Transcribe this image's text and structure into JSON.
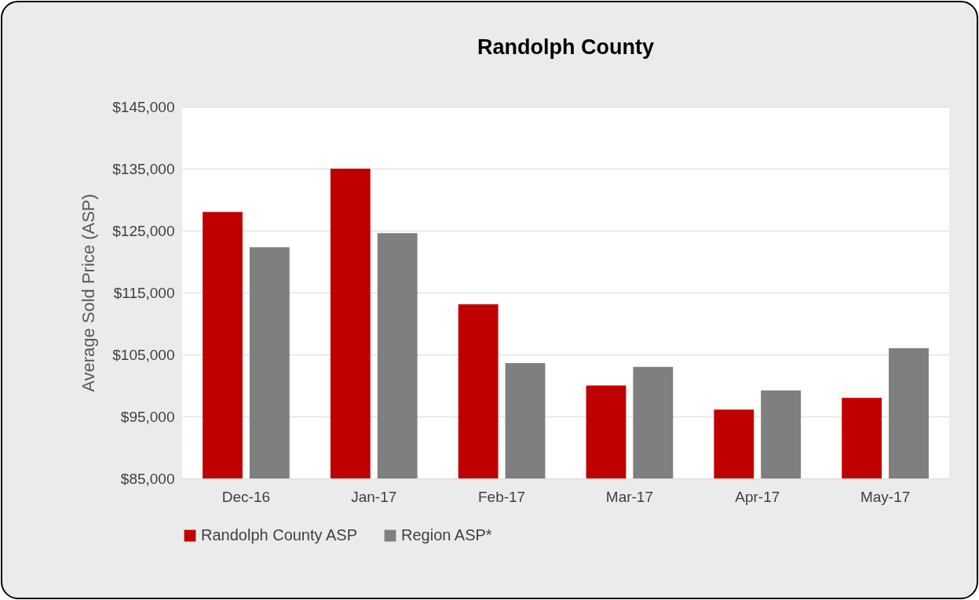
{
  "chart_data": {
    "type": "bar",
    "title": "Randolph County",
    "ylabel": "Average Sold Price (ASP)",
    "categories": [
      "Dec-16",
      "Jan-17",
      "Feb-17",
      "Mar-17",
      "Apr-17",
      "May-17"
    ],
    "series": [
      {
        "name": "Randolph County ASP",
        "color": "#c00000",
        "values": [
          128000,
          135000,
          113100,
          100000,
          96100,
          98000
        ]
      },
      {
        "name": "Region ASP*",
        "color": "#7f7f7f",
        "values": [
          122300,
          124600,
          103600,
          103000,
          99200,
          106000
        ]
      }
    ],
    "ylim": [
      85000,
      145000
    ],
    "yticks": [
      {
        "value": 85000,
        "label": "$85,000"
      },
      {
        "value": 95000,
        "label": "$95,000"
      },
      {
        "value": 105000,
        "label": "$105,000"
      },
      {
        "value": 115000,
        "label": "$115,000"
      },
      {
        "value": 125000,
        "label": "$125,000"
      },
      {
        "value": 135000,
        "label": "$135,000"
      },
      {
        "value": 145000,
        "label": "$145,000"
      }
    ],
    "grid": "y",
    "legend": "bottom"
  }
}
